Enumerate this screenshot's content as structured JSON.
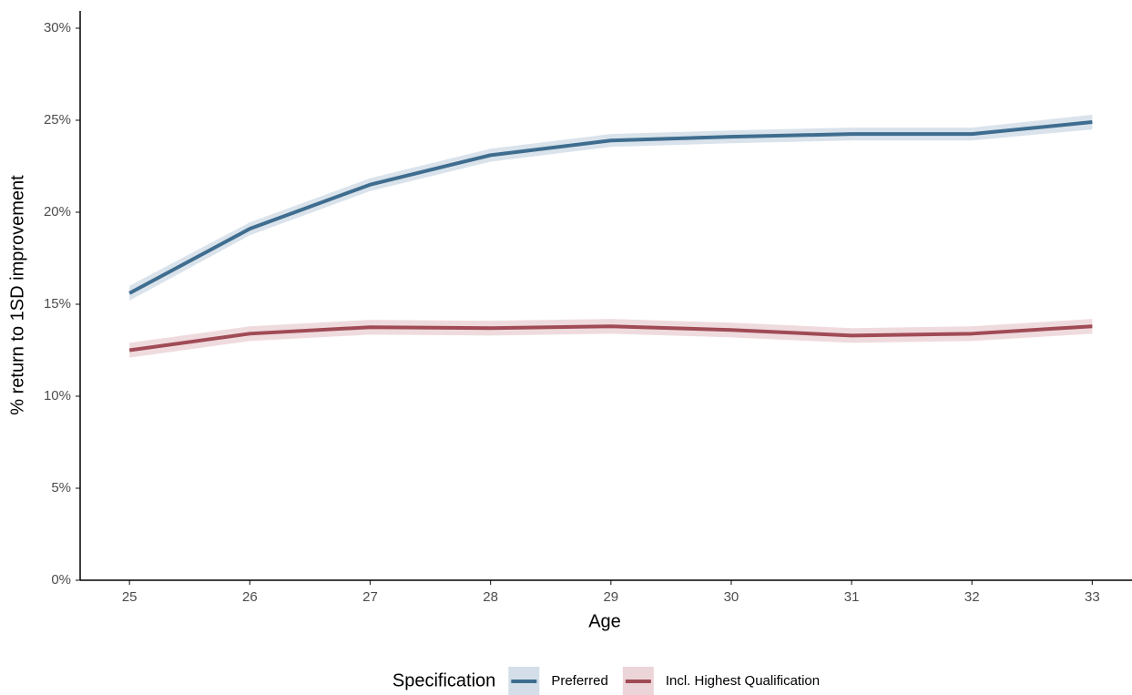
{
  "chart_data": {
    "type": "line",
    "x_label": "Age",
    "y_label": "% return to 1SD improvement",
    "x": [
      25,
      26,
      27,
      28,
      29,
      30,
      31,
      32,
      33
    ],
    "series": [
      {
        "name": "Preferred",
        "color": "#3f6d8f",
        "band_color": "#d3dee8",
        "values": [
          15.6,
          19.1,
          21.5,
          23.1,
          23.9,
          24.1,
          24.25,
          24.25,
          24.9
        ],
        "lower": [
          15.2,
          18.75,
          21.15,
          22.75,
          23.55,
          23.75,
          23.9,
          23.9,
          24.5
        ],
        "upper": [
          16.0,
          19.45,
          21.85,
          23.45,
          24.25,
          24.45,
          24.6,
          24.6,
          25.3
        ]
      },
      {
        "name": "Incl. Highest Qualification",
        "color": "#a04b55",
        "band_color": "#ecd5d8",
        "values": [
          12.5,
          13.4,
          13.75,
          13.7,
          13.8,
          13.6,
          13.3,
          13.4,
          13.8
        ],
        "lower": [
          12.1,
          13.0,
          13.35,
          13.3,
          13.4,
          13.2,
          12.9,
          13.0,
          13.4
        ],
        "upper": [
          12.9,
          13.8,
          14.15,
          14.1,
          14.2,
          14.0,
          13.7,
          13.8,
          14.2
        ]
      }
    ],
    "xlim": [
      24.59,
      33.33
    ],
    "ylim": [
      0,
      30.94
    ],
    "xticks": [
      25,
      26,
      27,
      28,
      29,
      30,
      31,
      32,
      33
    ],
    "yticks": [
      {
        "value": 0,
        "label": "0%"
      },
      {
        "value": 5,
        "label": "5%"
      },
      {
        "value": 10,
        "label": "10%"
      },
      {
        "value": 15,
        "label": "15%"
      },
      {
        "value": 20,
        "label": "20%"
      },
      {
        "value": 25,
        "label": "25%"
      },
      {
        "value": 30,
        "label": "30%"
      }
    ],
    "legend_title": "Specification",
    "legend_position": "bottom",
    "grid": false
  }
}
